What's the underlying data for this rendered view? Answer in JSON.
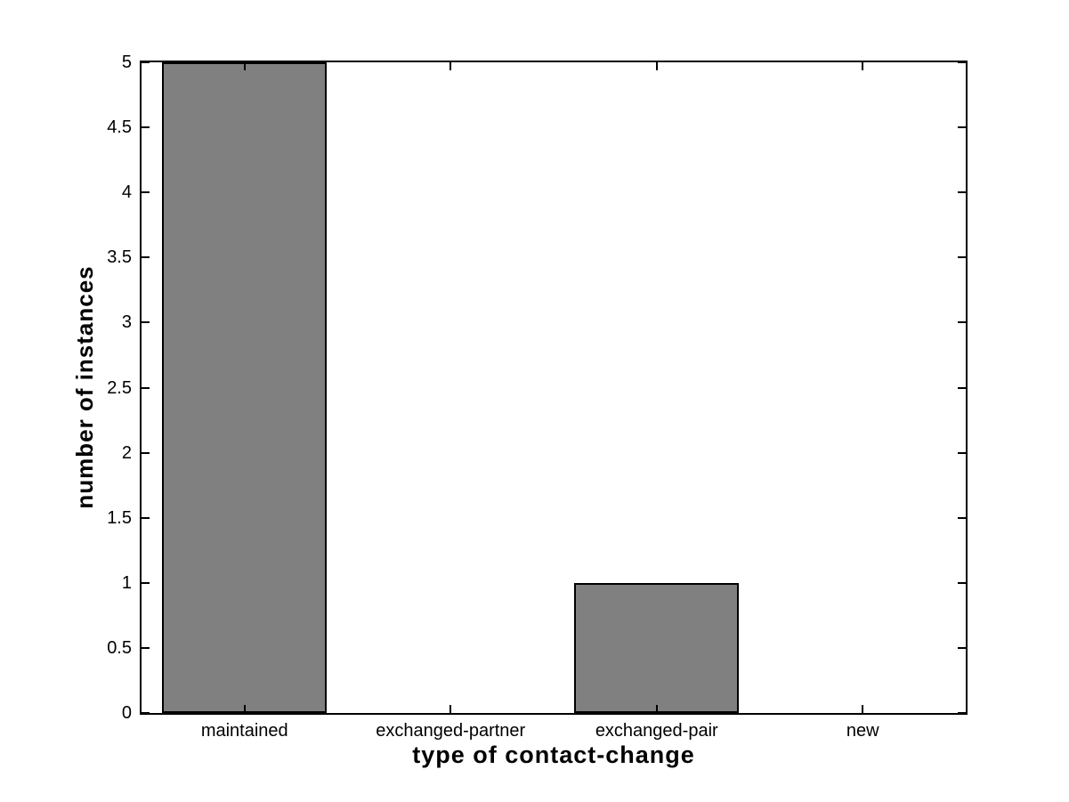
{
  "chart_data": {
    "type": "bar",
    "categories": [
      "maintained",
      "exchanged-partner",
      "exchanged-pair",
      "new"
    ],
    "values": [
      5,
      0,
      1,
      0
    ],
    "title": "",
    "xlabel": "type of contact-change",
    "ylabel": "number of instances",
    "ylim": [
      0,
      5
    ],
    "ytick_step": 0.5,
    "ytick_labels": [
      "0",
      "0.5",
      "1",
      "1.5",
      "2",
      "2.5",
      "3",
      "3.5",
      "4",
      "4.5",
      "5"
    ],
    "bar_width_fraction": 0.8,
    "bar_color": "#808080",
    "bar_edge_color": "#000000",
    "axis_color": "#000000",
    "background_color": "#ffffff",
    "grid": false,
    "legend": null,
    "box": true,
    "tick_direction": "in"
  }
}
